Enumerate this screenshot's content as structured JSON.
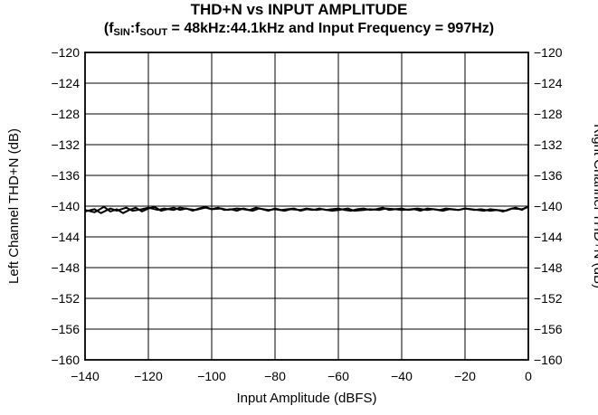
{
  "title": {
    "line1": "THD+N vs INPUT AMPLITUDE",
    "line2_prefix": "(f",
    "sub_in": "SIN",
    "colon": ":f",
    "sub_out": "SOUT",
    "line2_suffix": " = 48kHz:44.1kHz and Input Frequency = 997Hz)"
  },
  "chart_data": {
    "type": "line",
    "title": "THD+N vs INPUT AMPLITUDE",
    "subtitle": "(fSIN:fSOUT = 48kHz:44.1kHz and Input Frequency = 997Hz)",
    "xlabel": "Input Amplitude (dBFS)",
    "ylabel": "Left Channel THD+N (dB)",
    "ylabel_right": "Right Channel THD+N (dB)",
    "xlim": [
      -140,
      0
    ],
    "ylim": [
      -160,
      -120
    ],
    "xticks": [
      -140,
      -120,
      -100,
      -80,
      -60,
      -40,
      -20,
      0
    ],
    "yticks": [
      -120,
      -124,
      -128,
      -132,
      -136,
      -140,
      -144,
      -148,
      -152,
      -156,
      -160
    ],
    "grid": true,
    "colors": {
      "line": "#000000",
      "grid": "#000000"
    },
    "series": [
      {
        "x": [
          -140,
          -137,
          -134,
          -132,
          -130,
          -128,
          -126,
          -124,
          -122,
          -120,
          -118,
          -116,
          -114,
          -112,
          -110,
          -108,
          -106,
          -104,
          -102,
          -100,
          -98,
          -96,
          -94,
          -92,
          -90,
          -88,
          -86,
          -84,
          -82,
          -80,
          -78,
          -76,
          -74,
          -72,
          -70,
          -68,
          -66,
          -64,
          -62,
          -60,
          -58,
          -56,
          -54,
          -52,
          -50,
          -48,
          -46,
          -44,
          -42,
          -40,
          -38,
          -36,
          -34,
          -32,
          -30,
          -28,
          -26,
          -24,
          -22,
          -20,
          -18,
          -16,
          -14,
          -12,
          -10,
          -8,
          -6,
          -4,
          -2,
          0
        ],
        "values": [
          -140.5,
          -140.8,
          -140.1,
          -140.7,
          -140.4,
          -140.9,
          -140.5,
          -140.2,
          -140.7,
          -140.3,
          -140.1,
          -140.6,
          -140.4,
          -140.2,
          -140.5,
          -140.3,
          -140.6,
          -140.3,
          -140.1,
          -140.4,
          -140.2,
          -140.5,
          -140.4,
          -140.6,
          -140.3,
          -140.5,
          -140.2,
          -140.4,
          -140.6,
          -140.3,
          -140.5,
          -140.4,
          -140.3,
          -140.6,
          -140.4,
          -140.5,
          -140.3,
          -140.5,
          -140.4,
          -140.3,
          -140.5,
          -140.6,
          -140.4,
          -140.3,
          -140.5,
          -140.4,
          -140.2,
          -140.5,
          -140.4,
          -140.3,
          -140.5,
          -140.4,
          -140.6,
          -140.3,
          -140.4,
          -140.5,
          -140.3,
          -140.4,
          -140.5,
          -140.3,
          -140.4,
          -140.5,
          -140.6,
          -140.4,
          -140.5,
          -140.7,
          -140.4,
          -140.2,
          -140.5,
          -140.0
        ]
      },
      {
        "x": [
          -140,
          -137,
          -135,
          -132,
          -130,
          -127,
          -125,
          -122,
          -120,
          -117,
          -115,
          -112,
          -110,
          -107,
          -105,
          -102,
          -100,
          -97,
          -95,
          -92,
          -90,
          -87,
          -85,
          -82,
          -80,
          -77,
          -75,
          -72,
          -70,
          -67,
          -65,
          -62,
          -60,
          -57,
          -55,
          -52,
          -50,
          -47,
          -45,
          -42,
          -40,
          -37,
          -35,
          -32,
          -30,
          -27,
          -25,
          -22,
          -20,
          -17,
          -15,
          -12,
          -10,
          -7,
          -5,
          -2,
          0
        ],
        "values": [
          -140.7,
          -140.4,
          -140.9,
          -140.3,
          -140.6,
          -140.2,
          -140.6,
          -140.4,
          -140.2,
          -140.5,
          -140.3,
          -140.5,
          -140.2,
          -140.4,
          -140.5,
          -140.2,
          -140.4,
          -140.3,
          -140.5,
          -140.3,
          -140.4,
          -140.6,
          -140.3,
          -140.5,
          -140.4,
          -140.6,
          -140.4,
          -140.5,
          -140.3,
          -140.5,
          -140.4,
          -140.6,
          -140.5,
          -140.3,
          -140.6,
          -140.5,
          -140.4,
          -140.5,
          -140.3,
          -140.4,
          -140.5,
          -140.4,
          -140.3,
          -140.5,
          -140.4,
          -140.6,
          -140.4,
          -140.5,
          -140.3,
          -140.5,
          -140.4,
          -140.6,
          -140.5,
          -140.6,
          -140.3,
          -140.4,
          -140.1
        ]
      }
    ]
  }
}
